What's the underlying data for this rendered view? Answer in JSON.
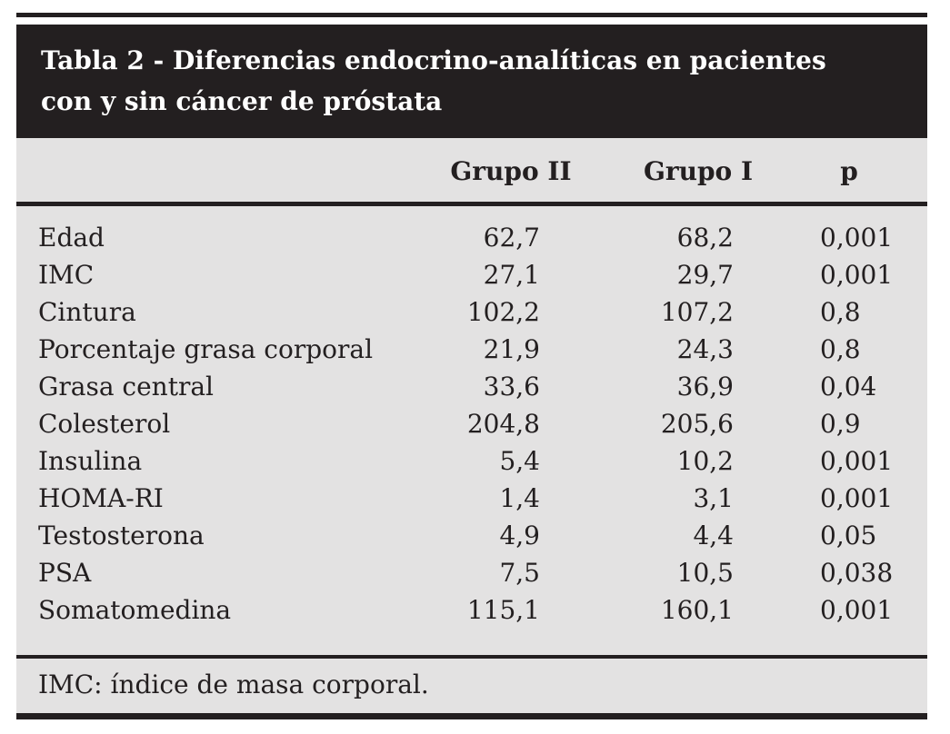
{
  "figure": {
    "title_line1": "Tabla 2 - Diferencias endocrino-analíticas en pacientes",
    "title_line2": "con y sin cáncer de próstata",
    "columns": [
      "Grupo II",
      "Grupo I",
      "p"
    ],
    "rows": [
      {
        "label": "Edad",
        "grupo_ii": "62,7",
        "grupo_i": "68,2",
        "p": "0,001"
      },
      {
        "label": "IMC",
        "grupo_ii": "27,1",
        "grupo_i": "29,7",
        "p": "0,001"
      },
      {
        "label": "Cintura",
        "grupo_ii": "102,2",
        "grupo_i": "107,2",
        "p": "0,8"
      },
      {
        "label": "Porcentaje grasa corporal",
        "grupo_ii": "21,9",
        "grupo_i": "24,3",
        "p": "0,8"
      },
      {
        "label": "Grasa central",
        "grupo_ii": "33,6",
        "grupo_i": "36,9",
        "p": "0,04"
      },
      {
        "label": "Colesterol",
        "grupo_ii": "204,8",
        "grupo_i": "205,6",
        "p": "0,9"
      },
      {
        "label": "Insulina",
        "grupo_ii": "5,4",
        "grupo_i": "10,2",
        "p": "0,001"
      },
      {
        "label": "HOMA-RI",
        "grupo_ii": "1,4",
        "grupo_i": "3,1",
        "p": "0,001"
      },
      {
        "label": "Testosterona",
        "grupo_ii": "4,9",
        "grupo_i": "4,4",
        "p": "0,05"
      },
      {
        "label": "PSA",
        "grupo_ii": "7,5",
        "grupo_i": "10,5",
        "p": "0,038"
      },
      {
        "label": "Somatomedina",
        "grupo_ii": "115,1",
        "grupo_i": "160,1",
        "p": "0,001"
      }
    ],
    "footnote": "IMC: índice de masa corporal.",
    "colors": {
      "ink_black": "#231f20",
      "panel_gray": "#e3e2e2",
      "title_text": "#ffffff",
      "page_background": "#ffffff"
    }
  }
}
